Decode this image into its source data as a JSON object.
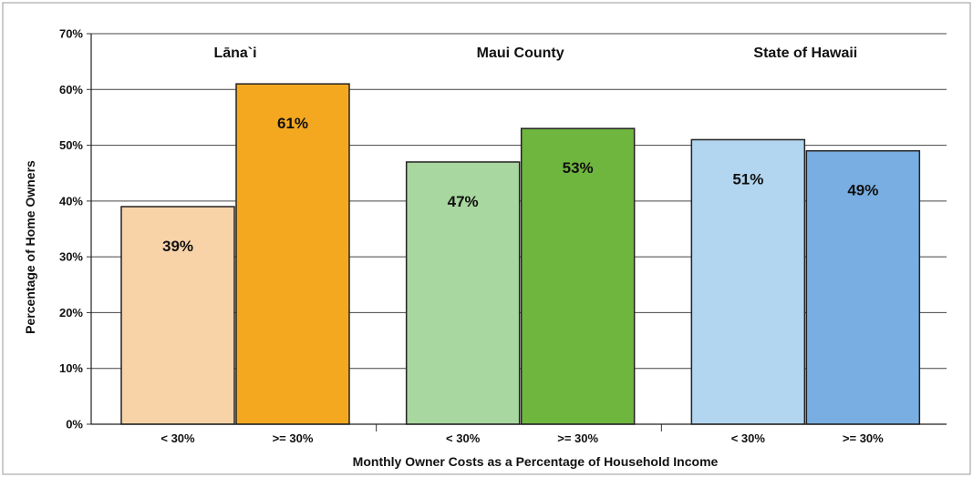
{
  "chart_data": {
    "type": "bar",
    "xlabel": "Monthly Owner Costs as a Percentage of Household Income",
    "ylabel": "Percentage of Home Owners",
    "ylim": [
      0,
      70
    ],
    "yticks": [
      "0%",
      "10%",
      "20%",
      "30%",
      "40%",
      "50%",
      "60%",
      "70%"
    ],
    "grid": true,
    "legend": "none",
    "groups": [
      {
        "title": "Lāna`i",
        "categories": [
          "< 30%",
          ">= 30%"
        ],
        "values": [
          39,
          61
        ],
        "labels": [
          "39%",
          "61%"
        ],
        "colors": [
          "#F8D3A8",
          "#F4A820"
        ]
      },
      {
        "title": "Maui County",
        "categories": [
          "< 30%",
          ">= 30%"
        ],
        "values": [
          47,
          53
        ],
        "labels": [
          "47%",
          "53%"
        ],
        "colors": [
          "#A9D7A0",
          "#6FB63F"
        ]
      },
      {
        "title": "State of Hawaii",
        "categories": [
          "< 30%",
          ">= 30%"
        ],
        "values": [
          51,
          49
        ],
        "labels": [
          "51%",
          "49%"
        ],
        "colors": [
          "#B2D6F0",
          "#78AEE2"
        ]
      }
    ]
  }
}
